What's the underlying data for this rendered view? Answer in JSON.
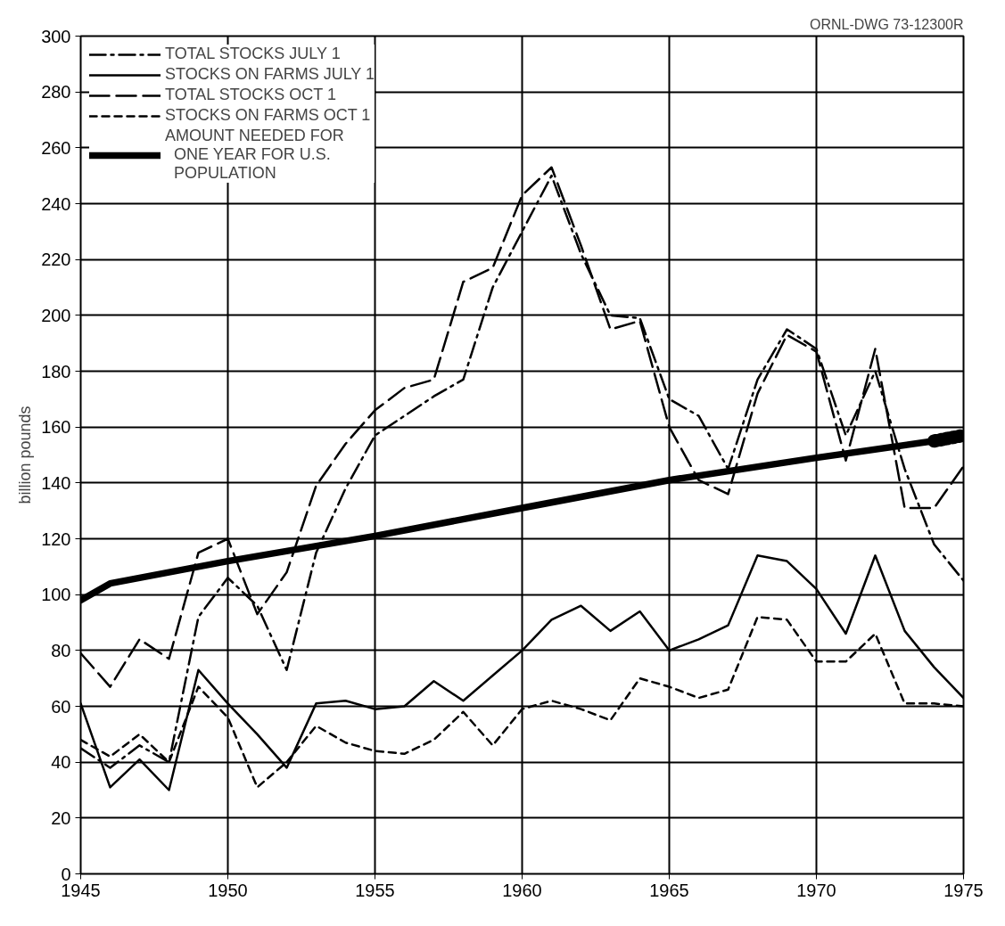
{
  "chart_data": {
    "type": "line",
    "ylabel": "billion pounds",
    "annotations": [
      "ORNL-DWG 73-12300R"
    ],
    "x": [
      1945,
      1946,
      1947,
      1948,
      1949,
      1950,
      1951,
      1952,
      1953,
      1954,
      1955,
      1956,
      1957,
      1958,
      1959,
      1960,
      1961,
      1962,
      1963,
      1964,
      1965,
      1966,
      1967,
      1968,
      1969,
      1970,
      1971,
      1972,
      1973,
      1974,
      1975
    ],
    "series": [
      {
        "name": "TOTAL STOCKS JULY 1",
        "color": "#000000",
        "line_style": "dashdot",
        "values": [
          45,
          38,
          46,
          40,
          92,
          106,
          96,
          73,
          115,
          138,
          157,
          164,
          171,
          177,
          210,
          230,
          250,
          222,
          200,
          199,
          170,
          164,
          145,
          177,
          195,
          188,
          157,
          180,
          145,
          118,
          105
        ]
      },
      {
        "name": "STOCKS ON FARMS JULY 1",
        "color": "#000000",
        "line_style": "solid",
        "values": [
          61,
          31,
          41,
          30,
          73,
          61,
          50,
          38,
          61,
          62,
          59,
          60,
          69,
          62,
          71,
          80,
          91,
          96,
          87,
          94,
          80,
          84,
          89,
          114,
          112,
          102,
          86,
          114,
          87,
          74,
          63
        ]
      },
      {
        "name": "TOTAL STOCKS OCT 1",
        "color": "#000000",
        "line_style": "long_dashed",
        "values": [
          79,
          67,
          84,
          77,
          115,
          120,
          93,
          108,
          139,
          154,
          166,
          174,
          177,
          212,
          217,
          243,
          253,
          225,
          195,
          198,
          160,
          141,
          136,
          172,
          193,
          187,
          148,
          188,
          131,
          131,
          146
        ]
      },
      {
        "name": "STOCKS ON FARMS OCT 1",
        "color": "#000000",
        "line_style": "dashed",
        "values": [
          48,
          42,
          50,
          40,
          67,
          56,
          31,
          40,
          53,
          47,
          44,
          43,
          48,
          58,
          46,
          59,
          62,
          59,
          55,
          70,
          67,
          63,
          66,
          92,
          91,
          76,
          76,
          86,
          61,
          61,
          60
        ]
      },
      {
        "name": "AMOUNT NEEDED FOR\n  ONE YEAR FOR U.S.\n  POPULATION",
        "color": "#000000",
        "line_style": "solid",
        "x": [
          1945,
          1946,
          1947,
          1950,
          1955,
          1960,
          1965,
          1970,
          1974
        ],
        "values": [
          98,
          104,
          106,
          112,
          121,
          131,
          141,
          149,
          155
        ]
      },
      {
        "color": "#000000",
        "line_style": "dotted",
        "x": [
          1974,
          1975
        ],
        "values": [
          155,
          157
        ]
      }
    ],
    "xlim": [
      1945,
      1975
    ],
    "xticks": [
      1945,
      1950,
      1955,
      1960,
      1965,
      1970,
      1975
    ],
    "ylim": [
      0,
      300
    ],
    "yticks": [
      0,
      20,
      40,
      60,
      80,
      100,
      120,
      140,
      160,
      180,
      200,
      220,
      240,
      260,
      280,
      300
    ],
    "grid": true,
    "legend": "top left"
  }
}
